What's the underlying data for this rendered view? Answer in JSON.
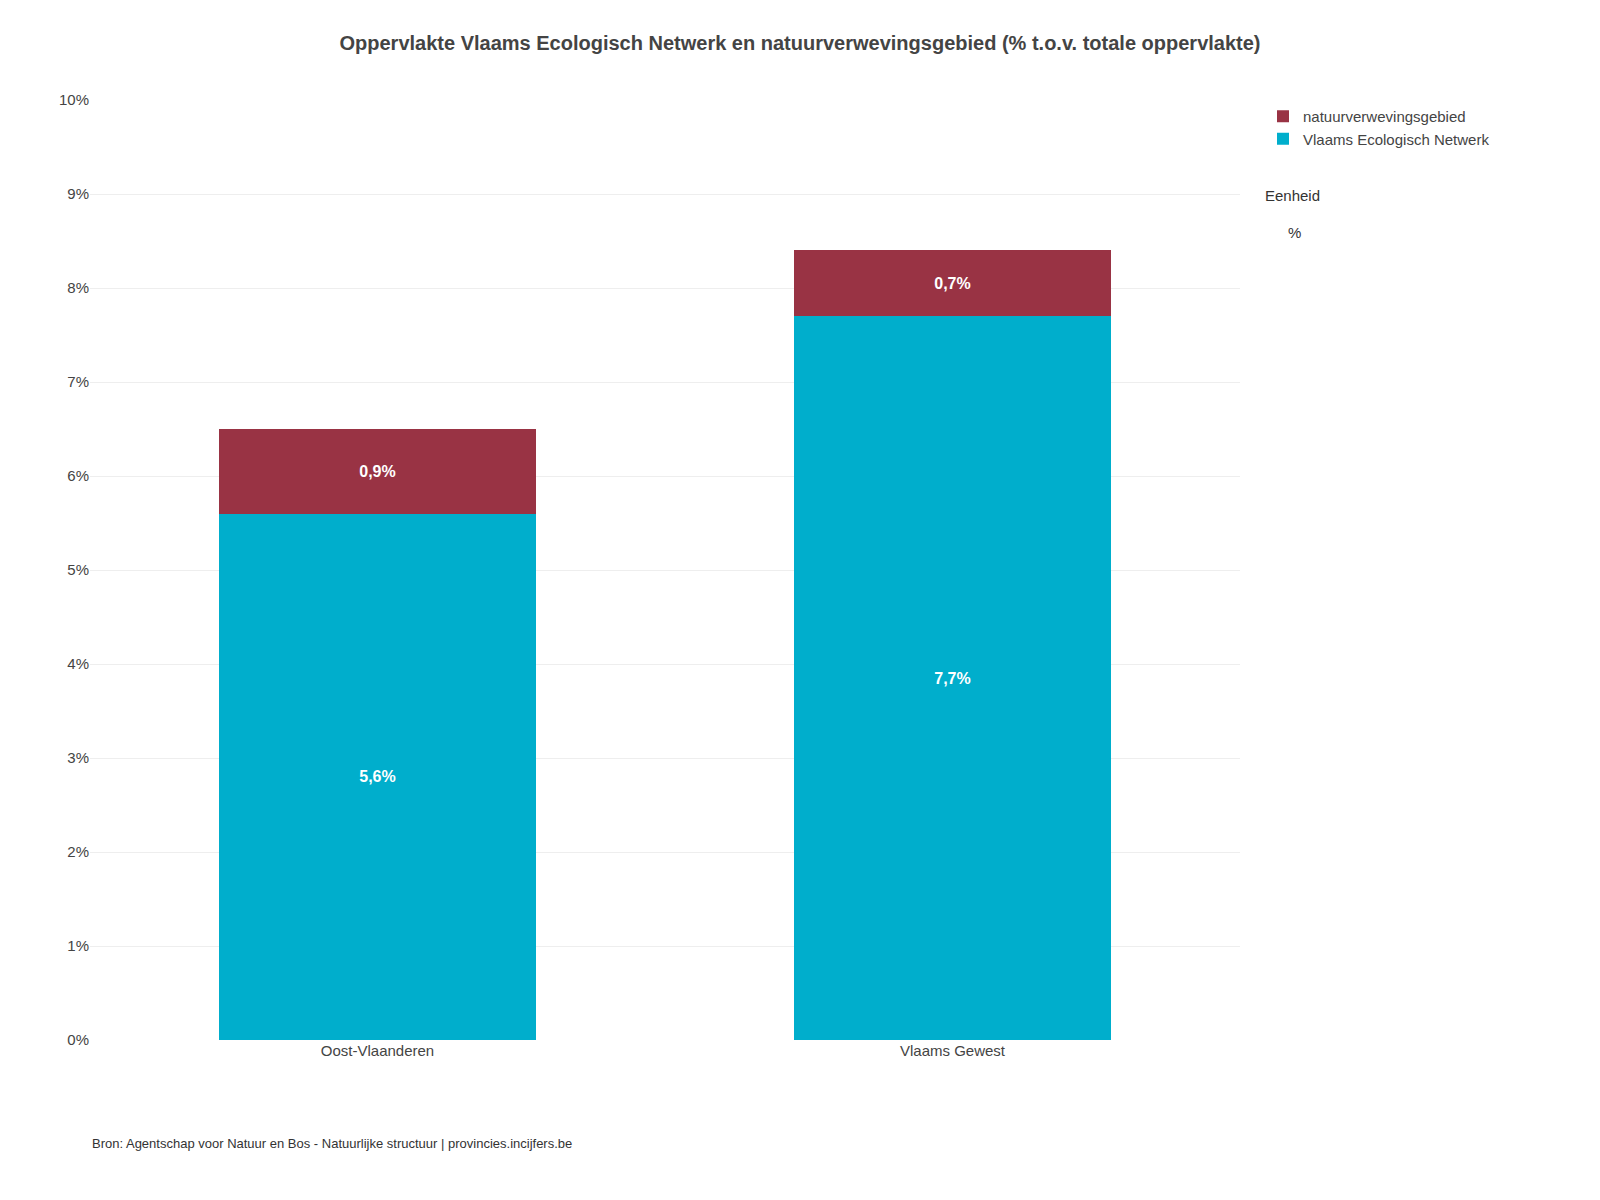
{
  "chart_data": {
    "type": "bar",
    "stacked": true,
    "title": "Oppervlakte Vlaams Ecologisch Netwerk en natuurverwevingsgebied (% t.o.v. totale oppervlakte)",
    "categories": [
      "Oost-Vlaanderen",
      "Vlaams Gewest"
    ],
    "series": [
      {
        "name": "Vlaams Ecologisch Netwerk",
        "color": "#00AECC",
        "values": [
          5.6,
          7.7
        ],
        "value_labels": [
          "5,6%",
          "7,7%"
        ]
      },
      {
        "name": "natuurverwevingsgebied",
        "color": "#993344",
        "values": [
          0.9,
          0.7
        ],
        "value_labels": [
          "0,9%",
          "0,7%"
        ]
      }
    ],
    "ylim": [
      0,
      10
    ],
    "yticks": [
      {
        "value": 0,
        "label": "0%"
      },
      {
        "value": 1,
        "label": "1%"
      },
      {
        "value": 2,
        "label": "2%"
      },
      {
        "value": 3,
        "label": "3%"
      },
      {
        "value": 4,
        "label": "4%"
      },
      {
        "value": 5,
        "label": "5%"
      },
      {
        "value": 6,
        "label": "6%"
      },
      {
        "value": 7,
        "label": "7%"
      },
      {
        "value": 8,
        "label": "8%"
      },
      {
        "value": 9,
        "label": "9%"
      },
      {
        "value": 10,
        "label": "10%"
      }
    ],
    "grid": true,
    "legend": "right",
    "data_labels": true,
    "unit_label": "Eenheid",
    "unit": "%",
    "footnote": "Bron: Agentschap voor Natuur en Bos - Natuurlijke structuur | provincies.incijfers.be"
  }
}
